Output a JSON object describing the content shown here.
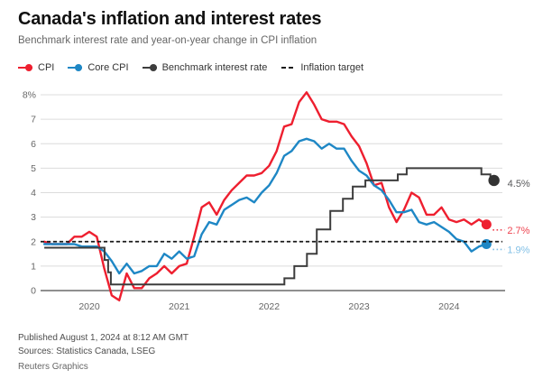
{
  "header": {
    "title": "Canada's inflation and interest rates",
    "subtitle": "Benchmark interest rate and year-on-year change in CPI inflation"
  },
  "legend": [
    {
      "label": "CPI",
      "color": "#ee1f2f",
      "marker": "line-dot"
    },
    {
      "label": "Core CPI",
      "color": "#1e87c5",
      "marker": "line-dot"
    },
    {
      "label": "Benchmark interest rate",
      "color": "#3d3d3d",
      "marker": "line-dot"
    },
    {
      "label": "Inflation target",
      "color": "#1a1a1a",
      "marker": "dashes"
    }
  ],
  "chart_data": {
    "type": "line",
    "title": "Canada's inflation and interest rates",
    "xlabel": "",
    "ylabel": "",
    "x_axis": {
      "ticks": [
        2020,
        2021,
        2022,
        2023,
        2024
      ],
      "range": [
        2019.45,
        2024.65
      ]
    },
    "y_axis": {
      "ticks": [
        {
          "v": 8,
          "label": "8%"
        },
        {
          "v": 7,
          "label": "7"
        },
        {
          "v": 6,
          "label": "6"
        },
        {
          "v": 5,
          "label": "5"
        },
        {
          "v": 4,
          "label": "4"
        },
        {
          "v": 3,
          "label": "3"
        },
        {
          "v": 2,
          "label": "2"
        },
        {
          "v": 1,
          "label": "1"
        },
        {
          "v": 0,
          "label": "0"
        }
      ],
      "range": [
        0,
        8
      ]
    },
    "grid": true,
    "colors": {
      "grid": "#dcdcdc",
      "zero_axis": "#8f8f8f",
      "tick_text": "#666666",
      "target": "#1a1a1a"
    },
    "series": [
      {
        "name": "CPI",
        "kind": "monthly-line",
        "color": "#ee1f2f",
        "start_t": 2019.5,
        "values": [
          2.0,
          1.9,
          1.9,
          1.9,
          2.2,
          2.2,
          2.4,
          2.2,
          0.9,
          -0.2,
          -0.4,
          0.7,
          0.1,
          0.1,
          0.5,
          0.7,
          1.0,
          0.7,
          1.0,
          1.1,
          2.2,
          3.4,
          3.6,
          3.1,
          3.7,
          4.1,
          4.4,
          4.7,
          4.7,
          4.8,
          5.1,
          5.7,
          6.7,
          6.8,
          7.7,
          8.1,
          7.6,
          7.0,
          6.9,
          6.9,
          6.8,
          6.3,
          5.9,
          5.2,
          4.3,
          4.4,
          3.4,
          2.8,
          3.3,
          4.0,
          3.8,
          3.1,
          3.1,
          3.4,
          2.9,
          2.8,
          2.9,
          2.7,
          2.9,
          2.7
        ],
        "end_label": "2.7%",
        "end_label_color": "#ee4450"
      },
      {
        "name": "Core CPI",
        "kind": "monthly-line",
        "color": "#1e87c5",
        "start_t": 2019.5,
        "values": [
          1.9,
          1.9,
          1.9,
          1.9,
          1.9,
          1.8,
          1.8,
          1.8,
          1.6,
          1.2,
          0.7,
          1.1,
          0.7,
          0.8,
          1.0,
          1.0,
          1.5,
          1.3,
          1.6,
          1.3,
          1.4,
          2.3,
          2.8,
          2.7,
          3.3,
          3.5,
          3.7,
          3.8,
          3.6,
          4.0,
          4.3,
          4.8,
          5.5,
          5.7,
          6.1,
          6.2,
          6.1,
          5.8,
          6.0,
          5.8,
          5.8,
          5.3,
          4.9,
          4.7,
          4.3,
          4.1,
          3.7,
          3.2,
          3.2,
          3.3,
          2.8,
          2.7,
          2.8,
          2.6,
          2.4,
          2.1,
          2.0,
          1.6,
          1.8,
          1.9
        ],
        "end_label": "1.9%",
        "end_label_color": "#82c0e6"
      },
      {
        "name": "Benchmark interest rate",
        "kind": "step",
        "color": "#3d3d3d",
        "points": [
          [
            2019.5,
            1.75
          ],
          [
            2020.17,
            1.25
          ],
          [
            2020.21,
            0.75
          ],
          [
            2020.24,
            0.25
          ],
          [
            2022.17,
            0.5
          ],
          [
            2022.28,
            1.0
          ],
          [
            2022.42,
            1.5
          ],
          [
            2022.53,
            2.5
          ],
          [
            2022.68,
            3.25
          ],
          [
            2022.82,
            3.75
          ],
          [
            2022.93,
            4.25
          ],
          [
            2023.07,
            4.5
          ],
          [
            2023.43,
            4.75
          ],
          [
            2023.53,
            5.0
          ],
          [
            2024.36,
            4.75
          ],
          [
            2024.46,
            4.5
          ]
        ],
        "end_t": 2024.5,
        "end_label": "4.5%",
        "end_label_color": "#58595b"
      },
      {
        "name": "Inflation target",
        "kind": "dashed-const",
        "color": "#1a1a1a",
        "value": 2.0
      }
    ]
  },
  "footer": {
    "published": "Published August 1, 2024 at 8:12 AM GMT",
    "sources": "Sources: Statistics Canada, LSEG",
    "credit": "Reuters Graphics"
  }
}
